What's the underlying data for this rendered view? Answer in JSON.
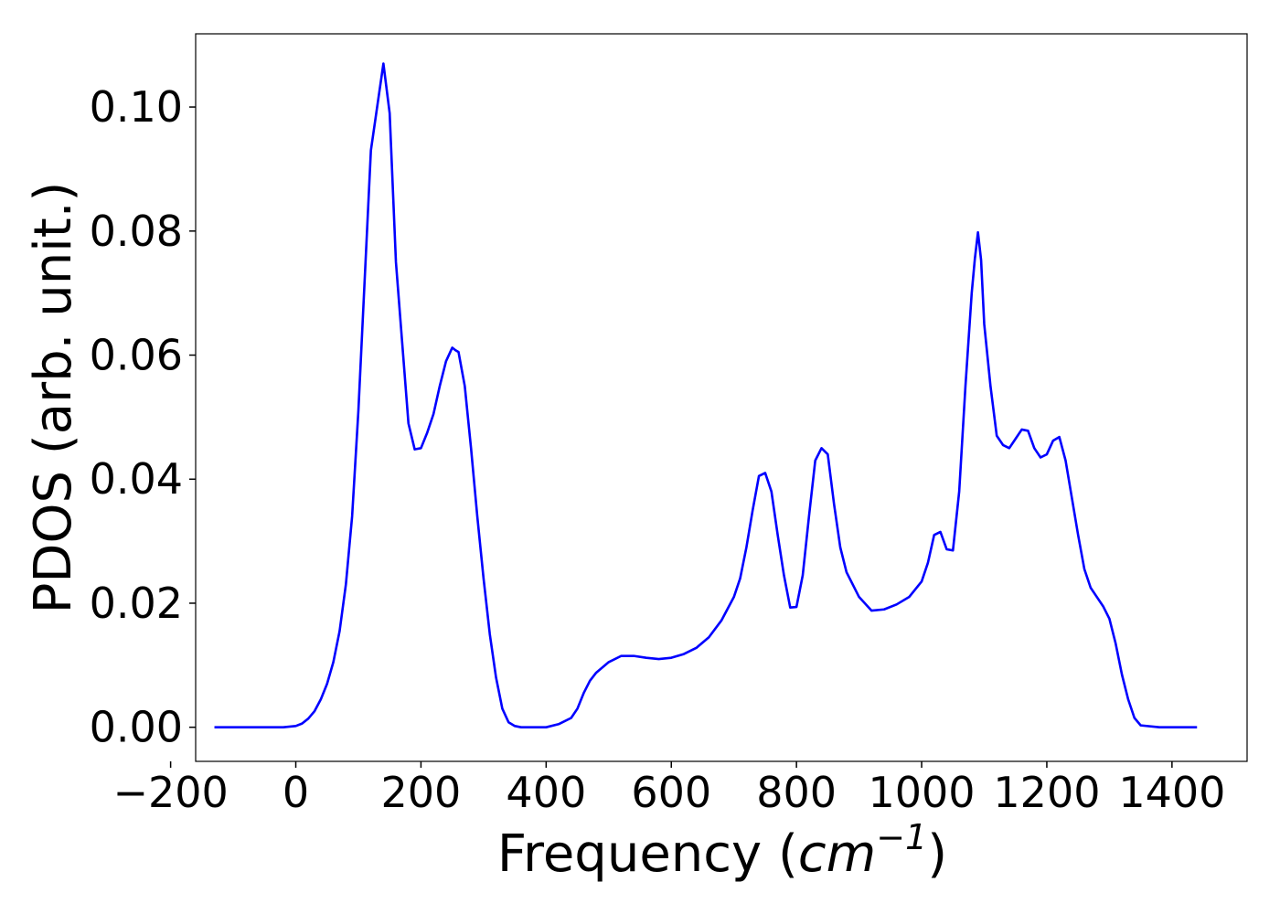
{
  "chart_data": {
    "type": "line",
    "title": "",
    "xlabel": "Frequency",
    "xlabel_unit_prefix": "(",
    "xlabel_unit_base": "cm",
    "xlabel_unit_exponent": "−1",
    "xlabel_unit_suffix": ")",
    "ylabel": "PDOS (arb. unit.)",
    "xlim": [
      -160,
      1520
    ],
    "ylim": [
      -0.0055,
      0.1118
    ],
    "x_ticks": [
      -200,
      0,
      200,
      400,
      600,
      800,
      1000,
      1200,
      1400
    ],
    "x_tick_labels": [
      "−200",
      "0",
      "200",
      "400",
      "600",
      "800",
      "1000",
      "1200",
      "1400"
    ],
    "y_ticks": [
      0.0,
      0.02,
      0.04,
      0.06,
      0.08,
      0.1
    ],
    "y_tick_labels": [
      "0.00",
      "0.02",
      "0.04",
      "0.06",
      "0.08",
      "0.10"
    ],
    "grid": false,
    "legend": "none",
    "line_color": "#0000ff",
    "series": [
      {
        "x": [
          -130,
          -100,
          -60,
          -20,
          0,
          10,
          20,
          30,
          40,
          50,
          60,
          70,
          80,
          90,
          100,
          110,
          120,
          130,
          140,
          150,
          160,
          170,
          180,
          190,
          200,
          210,
          220,
          230,
          240,
          250,
          255,
          260,
          270,
          280,
          290,
          300,
          310,
          320,
          330,
          340,
          350,
          360,
          380,
          400,
          420,
          440,
          450,
          460,
          470,
          480,
          500,
          520,
          540,
          560,
          580,
          600,
          620,
          640,
          660,
          680,
          700,
          710,
          720,
          730,
          740,
          750,
          760,
          770,
          780,
          790,
          800,
          810,
          820,
          830,
          840,
          850,
          860,
          870,
          880,
          900,
          920,
          940,
          960,
          980,
          1000,
          1010,
          1020,
          1030,
          1040,
          1050,
          1060,
          1070,
          1080,
          1085,
          1090,
          1095,
          1100,
          1110,
          1120,
          1130,
          1140,
          1150,
          1160,
          1170,
          1180,
          1190,
          1200,
          1210,
          1220,
          1230,
          1240,
          1250,
          1260,
          1270,
          1280,
          1290,
          1300,
          1310,
          1320,
          1330,
          1340,
          1350,
          1380,
          1420,
          1440
        ],
        "y": [
          0.0,
          0.0,
          0.0,
          0.0,
          0.0002,
          0.0006,
          0.0014,
          0.0026,
          0.0045,
          0.007,
          0.0105,
          0.0155,
          0.023,
          0.034,
          0.051,
          0.072,
          0.093,
          0.1,
          0.107,
          0.099,
          0.075,
          0.062,
          0.049,
          0.0448,
          0.045,
          0.0475,
          0.0505,
          0.055,
          0.059,
          0.0612,
          0.0608,
          0.0605,
          0.055,
          0.045,
          0.034,
          0.024,
          0.015,
          0.008,
          0.003,
          0.0008,
          0.0002,
          0.0,
          0.0,
          0.0,
          0.0005,
          0.0015,
          0.003,
          0.0055,
          0.0075,
          0.0088,
          0.0105,
          0.0115,
          0.0115,
          0.0112,
          0.011,
          0.0112,
          0.0118,
          0.0128,
          0.0145,
          0.0172,
          0.021,
          0.024,
          0.029,
          0.035,
          0.0405,
          0.041,
          0.038,
          0.031,
          0.0245,
          0.0193,
          0.0194,
          0.0245,
          0.034,
          0.043,
          0.045,
          0.044,
          0.036,
          0.029,
          0.025,
          0.021,
          0.0188,
          0.019,
          0.0198,
          0.021,
          0.0235,
          0.0265,
          0.031,
          0.0315,
          0.0287,
          0.0285,
          0.038,
          0.055,
          0.07,
          0.0755,
          0.0798,
          0.0753,
          0.065,
          0.055,
          0.047,
          0.0455,
          0.045,
          0.0465,
          0.048,
          0.0478,
          0.045,
          0.0435,
          0.044,
          0.0462,
          0.0468,
          0.043,
          0.037,
          0.031,
          0.0255,
          0.0225,
          0.021,
          0.0195,
          0.0175,
          0.0135,
          0.0085,
          0.0045,
          0.0015,
          0.0003,
          0.0,
          0.0,
          0.0
        ]
      }
    ]
  }
}
